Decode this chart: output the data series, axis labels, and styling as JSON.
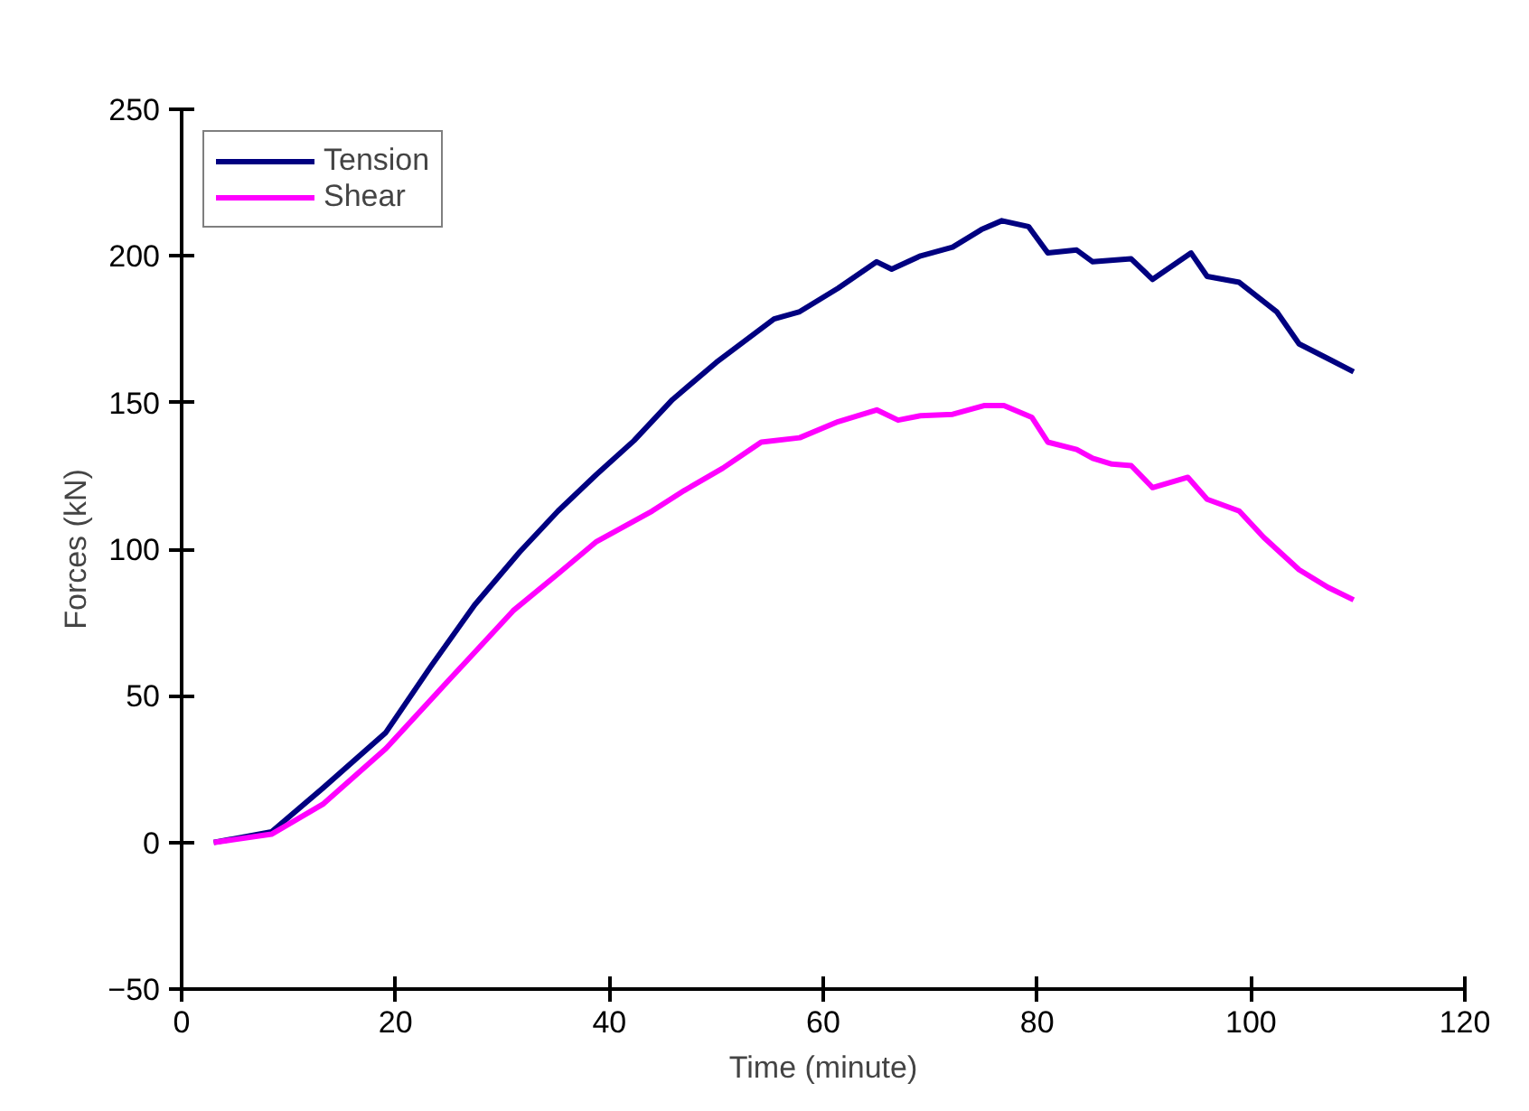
{
  "chart_data": {
    "type": "line",
    "xlabel": "Time (minute)",
    "ylabel": "Forces (kN)",
    "xlim": [
      0,
      120
    ],
    "ylim": [
      -50,
      250
    ],
    "xticks": [
      0,
      20,
      40,
      60,
      80,
      100,
      120
    ],
    "yticks": [
      -50,
      0,
      50,
      100,
      150,
      200,
      250
    ],
    "grid": false,
    "legend": "top left",
    "marker": "none",
    "line_style": "solid",
    "series": [
      {
        "name": "Tension",
        "color": "#000080",
        "x": [
          3,
          8.4,
          13.2,
          19.1,
          23.3,
          27.4,
          31.6,
          35.2,
          38.8,
          42.3,
          45.9,
          50,
          55.4,
          57.8,
          61.4,
          65,
          66.4,
          69.1,
          72.1,
          74.8,
          76.7,
          79.2,
          81,
          83.7,
          85.2,
          88.8,
          90.8,
          94.4,
          95.9,
          98.9,
          102.4,
          104.5,
          107.2,
          109.6
        ],
        "values": [
          0,
          3.6,
          18.5,
          37.5,
          60,
          81,
          99,
          113,
          125.5,
          137,
          151,
          163.7,
          178.5,
          181,
          189,
          198,
          195.5,
          200,
          203,
          209,
          212,
          210,
          201,
          202,
          198,
          199,
          192,
          201,
          193,
          191,
          181,
          170,
          165,
          160.5
        ]
      },
      {
        "name": "Shear",
        "color": "#ff00ff",
        "x": [
          3,
          8.4,
          13.2,
          19.1,
          24.5,
          31,
          35.2,
          38.8,
          44,
          47,
          50.6,
          54.2,
          57.8,
          61.4,
          65,
          67,
          69.1,
          72.1,
          75.1,
          76.9,
          79.5,
          81,
          83.7,
          85.2,
          87,
          88.8,
          90.8,
          94.1,
          95.9,
          98.9,
          101.2,
          104.5,
          107.2,
          109.6
        ],
        "values": [
          0,
          2.8,
          13,
          32,
          53.4,
          79,
          91.6,
          102.6,
          113,
          120,
          127.6,
          136.5,
          138,
          143.5,
          147.5,
          144,
          145.5,
          146,
          149,
          149,
          145,
          136.5,
          134,
          131,
          129,
          128.5,
          121,
          124.5,
          117,
          113,
          104,
          93,
          87,
          82.7
        ]
      }
    ]
  }
}
